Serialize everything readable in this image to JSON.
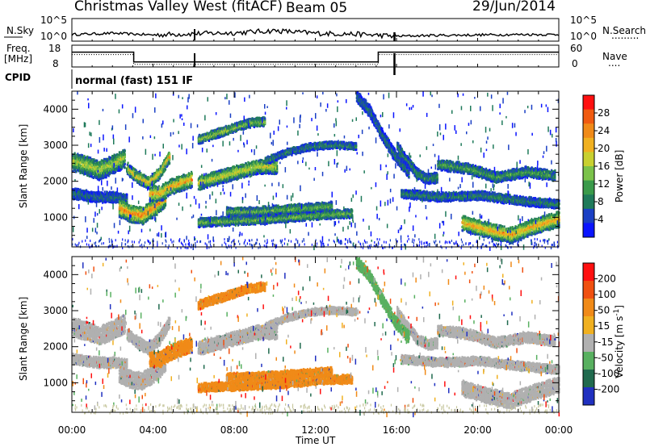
{
  "header": {
    "station": "Christmas Valley West (fitACF)",
    "beam": "Beam 05",
    "date": "29/Jun/2014"
  },
  "nsky_panel": {
    "left_label": "N.Sky",
    "left_ticks": [
      "10^5",
      "10^0"
    ],
    "right_ticks": [
      "10^5",
      "10^0"
    ],
    "right_label": "N.Search",
    "right_label_dots": "........."
  },
  "freq_panel": {
    "left_label_1": "Freq.",
    "left_label_2": "[MHz]",
    "left_ticks": [
      "18",
      "8"
    ],
    "right_ticks": [
      "60",
      "0"
    ],
    "right_label": "Nave",
    "right_label_dots": "...."
  },
  "cpid": {
    "label": "CPID",
    "text": "normal (fast) 151 IF"
  },
  "axes": {
    "ylabel": "Slant Range [km]",
    "xlabel": "Time UT",
    "x_ticks": [
      "00:00",
      "04:00",
      "08:00",
      "12:00",
      "16:00",
      "20:00",
      "00:00"
    ],
    "y_ticks": [
      "4000",
      "3000",
      "2000",
      "1000"
    ]
  },
  "colors": {
    "power": [
      "#0a14ff",
      "#1a3fc4",
      "#1f7a5a",
      "#3a9a4a",
      "#7bc24a",
      "#c8d030",
      "#f0b020",
      "#f08a18",
      "#f05a10",
      "#ff1010"
    ],
    "velocity": [
      "#2030c0",
      "#206a4e",
      "#58b060",
      "#b0b0b0",
      "#b0b0b0",
      "#f0b020",
      "#f08a18",
      "#f05010",
      "#ff1010"
    ],
    "velocity_bands": [
      "#2030c0",
      "#206a4e",
      "#58b060",
      "#b0b0b0",
      "#f0b020",
      "#f08a18",
      "#f05010",
      "#ff1010"
    ]
  },
  "power_colorbar": {
    "label": "Power [dB]",
    "ticks": [
      "28",
      "24",
      "20",
      "16",
      "12",
      "8",
      "4"
    ]
  },
  "velocity_colorbar": {
    "label": "Velocity [m s",
    "label_sup": "-1",
    "label_end": "]",
    "ticks": [
      "200",
      "100",
      "50",
      "15",
      "-15",
      "-50",
      "-100",
      "-200"
    ]
  },
  "chart_data": [
    {
      "type": "line",
      "panel": "N.Sky / N.Search",
      "x": [
        0,
        2,
        4,
        6,
        8,
        10,
        12,
        14,
        16,
        18,
        20,
        22,
        24
      ],
      "series": [
        {
          "values": [
            1.2,
            1.5,
            1.1,
            1.4,
            1.6,
            2.1,
            1.5,
            1.3,
            0.8,
            1.0,
            1.1,
            1.2,
            1.2
          ]
        }
      ],
      "ylim": [
        0,
        5
      ]
    },
    {
      "type": "line",
      "panel": "Freq. / Nave",
      "x": [
        0,
        3.05,
        3.05,
        15.1,
        15.1,
        24
      ],
      "series": [
        {
          "values": [
            14.8,
            14.8,
            10.3,
            10.3,
            14.8,
            14.8
          ]
        }
      ],
      "ylim": [
        8,
        18
      ]
    },
    {
      "type": "heatmap",
      "panel": "Power",
      "xlim": [
        0,
        24
      ],
      "ylim": [
        180,
        4500
      ],
      "clim": [
        0,
        30
      ]
    },
    {
      "type": "heatmap",
      "panel": "Velocity",
      "xlim": [
        0,
        24
      ],
      "ylim": [
        180,
        4500
      ],
      "clim": [
        -250,
        250
      ]
    }
  ]
}
